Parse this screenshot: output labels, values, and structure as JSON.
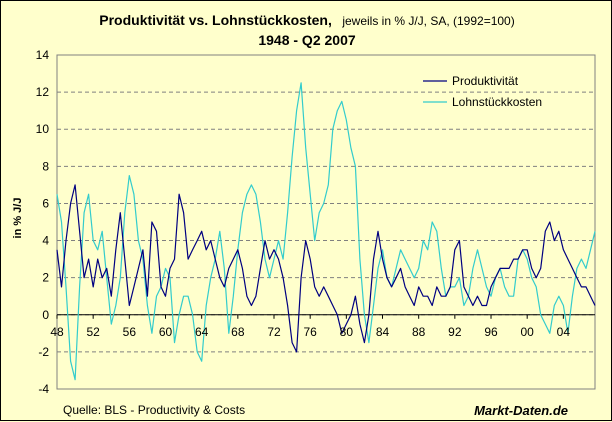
{
  "chart_data": {
    "type": "line",
    "title_main": "Produktivität vs. Lohnstückkosten,",
    "title_sub": "jeweils in % J/J, SA, (1992=100)",
    "title_line2": "1948 - Q2 2007",
    "ylabel": "in % J/J",
    "ylim": [
      -4,
      14
    ],
    "yticks": [
      "-4",
      "-2",
      "0",
      "2",
      "4",
      "6",
      "8",
      "10",
      "12",
      "14"
    ],
    "xlim": [
      1948,
      2007.5
    ],
    "xticks": [
      "48",
      "52",
      "56",
      "60",
      "64",
      "68",
      "72",
      "76",
      "80",
      "84",
      "88",
      "92",
      "96",
      "00",
      "04"
    ],
    "grid": "horizontal dashed",
    "legend_position": "top-right",
    "source": "Quelle: BLS - Productivity & Costs",
    "brand": "Markt-Daten.de",
    "colors": {
      "produktivitaet": "#000080",
      "lohnstueckkosten": "#33CCCC"
    },
    "series": [
      {
        "name": "Produktivität",
        "x": [
          1948.0,
          1948.5,
          1949.0,
          1949.5,
          1950.0,
          1950.5,
          1951.0,
          1951.5,
          1952.0,
          1952.5,
          1953.0,
          1953.5,
          1954.0,
          1954.5,
          1955.0,
          1955.5,
          1956.0,
          1956.5,
          1957.0,
          1957.5,
          1958.0,
          1958.5,
          1959.0,
          1959.5,
          1960.0,
          1960.5,
          1961.0,
          1961.5,
          1962.0,
          1962.5,
          1963.0,
          1963.5,
          1964.0,
          1964.5,
          1965.0,
          1965.5,
          1966.0,
          1966.5,
          1967.0,
          1967.5,
          1968.0,
          1968.5,
          1969.0,
          1969.5,
          1970.0,
          1970.5,
          1971.0,
          1971.5,
          1972.0,
          1972.5,
          1973.0,
          1973.5,
          1974.0,
          1974.5,
          1975.0,
          1975.5,
          1976.0,
          1976.5,
          1977.0,
          1977.5,
          1978.0,
          1978.5,
          1979.0,
          1979.5,
          1980.0,
          1980.5,
          1981.0,
          1981.5,
          1982.0,
          1982.5,
          1983.0,
          1983.5,
          1984.0,
          1984.5,
          1985.0,
          1985.5,
          1986.0,
          1986.5,
          1987.0,
          1987.5,
          1988.0,
          1988.5,
          1989.0,
          1989.5,
          1990.0,
          1990.5,
          1991.0,
          1991.5,
          1992.0,
          1992.5,
          1993.0,
          1993.5,
          1994.0,
          1994.5,
          1995.0,
          1995.5,
          1996.0,
          1996.5,
          1997.0,
          1997.5,
          1998.0,
          1998.5,
          1999.0,
          1999.5,
          2000.0,
          2000.5,
          2001.0,
          2001.5,
          2002.0,
          2002.5,
          2003.0,
          2003.5,
          2004.0,
          2004.5,
          2005.0,
          2005.5,
          2006.0,
          2006.5,
          2007.0,
          2007.5
        ],
        "values": [
          3.5,
          1.5,
          4.0,
          6.0,
          7.0,
          4.5,
          2.0,
          3.0,
          1.5,
          3.0,
          2.0,
          2.5,
          1.0,
          3.5,
          5.5,
          3.0,
          0.5,
          1.5,
          2.5,
          3.5,
          1.0,
          5.0,
          4.5,
          1.5,
          1.0,
          2.5,
          3.0,
          6.5,
          5.5,
          3.0,
          3.5,
          4.0,
          4.5,
          3.5,
          4.0,
          3.0,
          2.0,
          1.5,
          2.5,
          3.0,
          3.5,
          2.5,
          1.0,
          0.5,
          1.0,
          2.5,
          4.0,
          3.0,
          3.5,
          3.0,
          2.0,
          0.5,
          -1.5,
          -2.0,
          2.0,
          4.0,
          3.0,
          1.5,
          1.0,
          1.5,
          1.0,
          0.5,
          0.0,
          -1.0,
          -0.5,
          0.0,
          1.0,
          -0.5,
          -1.5,
          0.0,
          3.0,
          4.5,
          3.0,
          2.0,
          1.5,
          2.0,
          2.5,
          1.5,
          1.0,
          0.5,
          1.5,
          1.0,
          1.0,
          0.5,
          1.5,
          1.0,
          1.0,
          1.5,
          3.5,
          4.0,
          1.5,
          1.0,
          0.5,
          1.0,
          0.5,
          0.5,
          1.5,
          2.0,
          2.5,
          2.5,
          2.5,
          3.0,
          3.0,
          3.5,
          3.5,
          2.5,
          2.0,
          2.5,
          4.5,
          5.0,
          4.0,
          4.5,
          3.5,
          3.0,
          2.5,
          2.0,
          1.5,
          1.5,
          1.0,
          0.5
        ]
      },
      {
        "name": "Lohnstückkosten",
        "x": [
          1948.0,
          1948.5,
          1949.0,
          1949.5,
          1950.0,
          1950.5,
          1951.0,
          1951.5,
          1952.0,
          1952.5,
          1953.0,
          1953.5,
          1954.0,
          1954.5,
          1955.0,
          1955.5,
          1956.0,
          1956.5,
          1957.0,
          1957.5,
          1958.0,
          1958.5,
          1959.0,
          1959.5,
          1960.0,
          1960.5,
          1961.0,
          1961.5,
          1962.0,
          1962.5,
          1963.0,
          1963.5,
          1964.0,
          1964.5,
          1965.0,
          1965.5,
          1966.0,
          1966.5,
          1967.0,
          1967.5,
          1968.0,
          1968.5,
          1969.0,
          1969.5,
          1970.0,
          1970.5,
          1971.0,
          1971.5,
          1972.0,
          1972.5,
          1973.0,
          1973.5,
          1974.0,
          1974.5,
          1975.0,
          1975.5,
          1976.0,
          1976.5,
          1977.0,
          1977.5,
          1978.0,
          1978.5,
          1979.0,
          1979.5,
          1980.0,
          1980.5,
          1981.0,
          1981.5,
          1982.0,
          1982.5,
          1983.0,
          1983.5,
          1984.0,
          1984.5,
          1985.0,
          1985.5,
          1986.0,
          1986.5,
          1987.0,
          1987.5,
          1988.0,
          1988.5,
          1989.0,
          1989.5,
          1990.0,
          1990.5,
          1991.0,
          1991.5,
          1992.0,
          1992.5,
          1993.0,
          1993.5,
          1994.0,
          1994.5,
          1995.0,
          1995.5,
          1996.0,
          1996.5,
          1997.0,
          1997.5,
          1998.0,
          1998.5,
          1999.0,
          1999.5,
          2000.0,
          2000.5,
          2001.0,
          2001.5,
          2002.0,
          2002.5,
          2003.0,
          2003.5,
          2004.0,
          2004.5,
          2005.0,
          2005.5,
          2006.0,
          2006.5,
          2007.0,
          2007.5
        ],
        "values": [
          6.5,
          5.0,
          1.5,
          -2.5,
          -3.5,
          1.5,
          5.5,
          6.5,
          4.0,
          3.5,
          4.5,
          2.0,
          -0.5,
          0.5,
          2.0,
          5.5,
          7.5,
          6.5,
          4.0,
          3.0,
          0.5,
          -1.0,
          1.0,
          1.5,
          2.5,
          2.0,
          -1.5,
          0.0,
          1.0,
          1.0,
          0.0,
          -2.0,
          -2.5,
          0.5,
          2.0,
          3.0,
          4.5,
          2.5,
          -1.0,
          1.0,
          3.5,
          5.5,
          6.5,
          7.0,
          6.5,
          5.0,
          3.0,
          2.0,
          3.0,
          4.0,
          3.0,
          5.5,
          8.5,
          11.0,
          12.5,
          9.0,
          6.5,
          4.0,
          5.5,
          6.0,
          7.0,
          10.0,
          11.0,
          11.5,
          10.5,
          9.0,
          8.0,
          3.0,
          0.0,
          -1.5,
          0.5,
          2.5,
          3.5,
          2.0,
          1.5,
          2.5,
          3.5,
          3.0,
          2.5,
          2.0,
          2.5,
          4.0,
          3.5,
          5.0,
          4.5,
          2.5,
          1.0,
          1.5,
          1.5,
          2.0,
          0.5,
          1.0,
          2.5,
          3.5,
          2.5,
          1.5,
          1.0,
          2.0,
          2.5,
          1.5,
          1.0,
          1.0,
          3.0,
          3.5,
          3.0,
          2.0,
          1.5,
          0.0,
          -0.5,
          -1.0,
          0.5,
          1.0,
          0.5,
          -1.0,
          1.0,
          2.5,
          3.0,
          2.5,
          3.5,
          4.5
        ]
      }
    ]
  }
}
